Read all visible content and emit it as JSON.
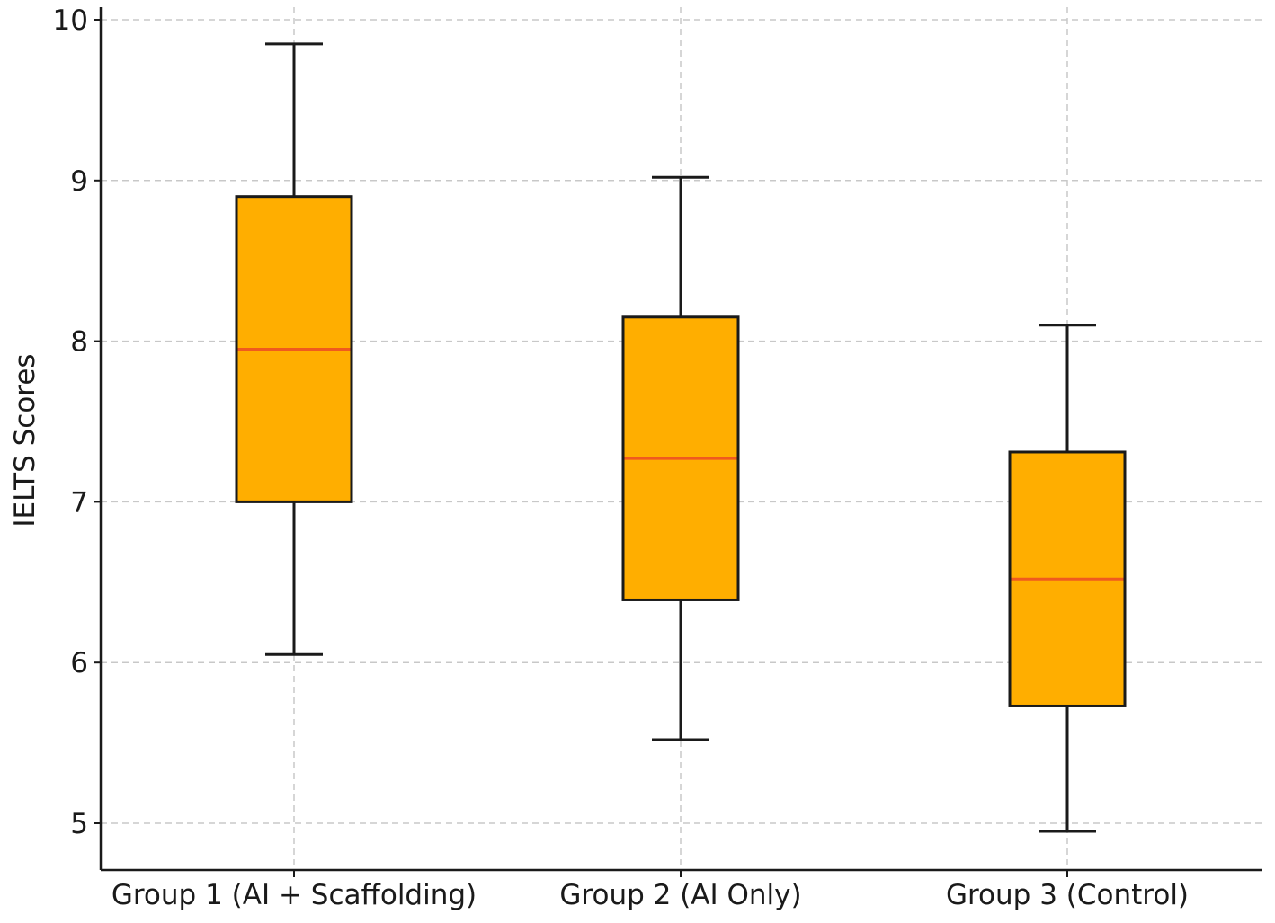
{
  "chart_data": {
    "type": "boxplot",
    "title": "",
    "xlabel": "",
    "ylabel": "IELTS Scores",
    "ylim": [
      4.7,
      10.1
    ],
    "yticks": [
      5,
      6,
      7,
      8,
      9,
      10
    ],
    "ytick_labels": [
      "5",
      "6",
      "7",
      "8",
      "9",
      "10"
    ],
    "grid": true,
    "categories": [
      "Group 1 (AI + Scaffolding)",
      "Group 2 (AI Only)",
      "Group 3 (Control)"
    ],
    "boxes": [
      {
        "whisker_low": 6.05,
        "q1": 7.0,
        "median": 7.95,
        "q3": 8.9,
        "whisker_high": 9.85
      },
      {
        "whisker_low": 5.52,
        "q1": 6.39,
        "median": 7.27,
        "q3": 8.15,
        "whisker_high": 9.02
      },
      {
        "whisker_low": 4.95,
        "q1": 5.73,
        "median": 6.52,
        "q3": 7.31,
        "whisker_high": 8.1
      }
    ],
    "colors": {
      "box_fill": "#FFAE00",
      "median": "#F05A1E",
      "edge": "#1a1a1a",
      "grid": "#c8c8c8"
    }
  }
}
